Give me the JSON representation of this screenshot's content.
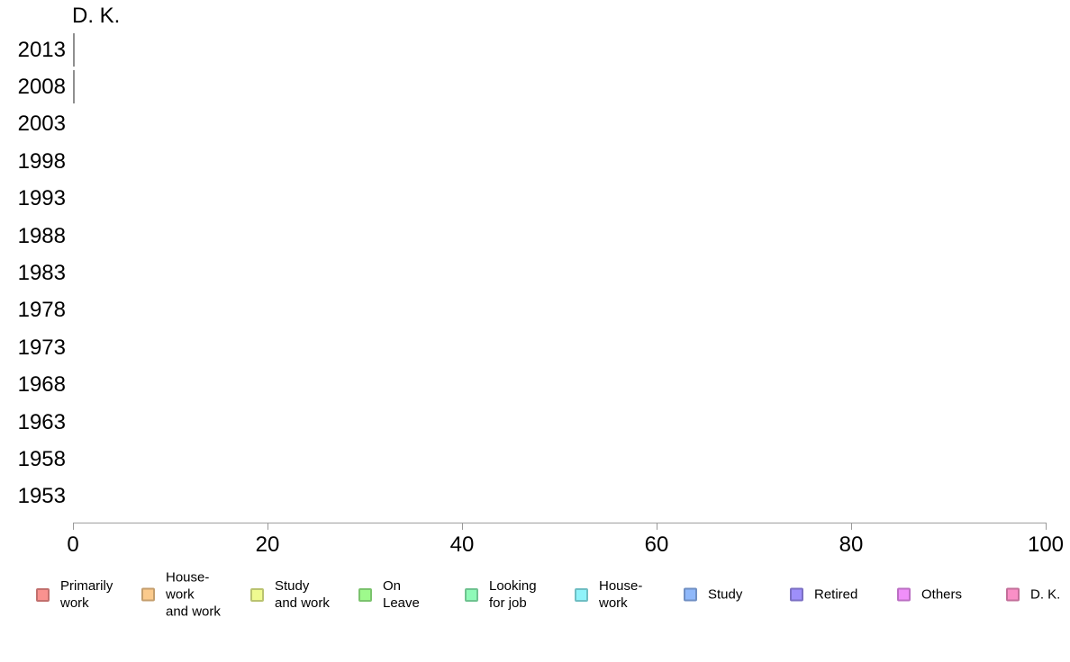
{
  "chart_data": {
    "type": "bar",
    "orientation": "horizontal",
    "panel_title": "D. K.",
    "categories": [
      "2013",
      "2008",
      "2003",
      "1998",
      "1993",
      "1988",
      "1983",
      "1978",
      "1973",
      "1968",
      "1963",
      "1958",
      "1953"
    ],
    "values": [
      0.1,
      0.1,
      0,
      0,
      0,
      0,
      0,
      0,
      0,
      0,
      0,
      0,
      0
    ],
    "outline_only_years": [
      "2013",
      "2008"
    ],
    "xlim": [
      0,
      100
    ],
    "xticks": [
      "0",
      "20",
      "40",
      "60",
      "80",
      "100"
    ],
    "xlabel": "",
    "ylabel": "",
    "grid": false,
    "legend_position": "bottom",
    "bar_outline_color": "#8f8f8f",
    "axis_line_color": "#9e9e9e",
    "tick_color": "#999999",
    "text_color": "#000000",
    "background_color": "#ffffff"
  },
  "legend": {
    "items": [
      {
        "label": "Primarily\nwork",
        "fill": "#F9928F",
        "border": "#C2706E"
      },
      {
        "label": "House-\nwork\nand work",
        "fill": "#FBCA8C",
        "border": "#C49E6D"
      },
      {
        "label": "Study\nand work",
        "fill": "#EFFA90",
        "border": "#BAC370"
      },
      {
        "label": "On\nLeave",
        "fill": "#9EFA8C",
        "border": "#7BC36D"
      },
      {
        "label": "Looking\nfor job",
        "fill": "#8FFAB8",
        "border": "#6FC390"
      },
      {
        "label": "House-\nwork",
        "fill": "#8FF3FA",
        "border": "#6FBEC3"
      },
      {
        "label": "Study",
        "fill": "#8FB8FA",
        "border": "#6F8FC3"
      },
      {
        "label": "Retired",
        "fill": "#9E8FFA",
        "border": "#7B6FC3"
      },
      {
        "label": "Others",
        "fill": "#F08FFA",
        "border": "#BB6FC3"
      },
      {
        "label": "D. K.",
        "fill": "#FA8FC6",
        "border": "#C36F9A"
      }
    ]
  }
}
